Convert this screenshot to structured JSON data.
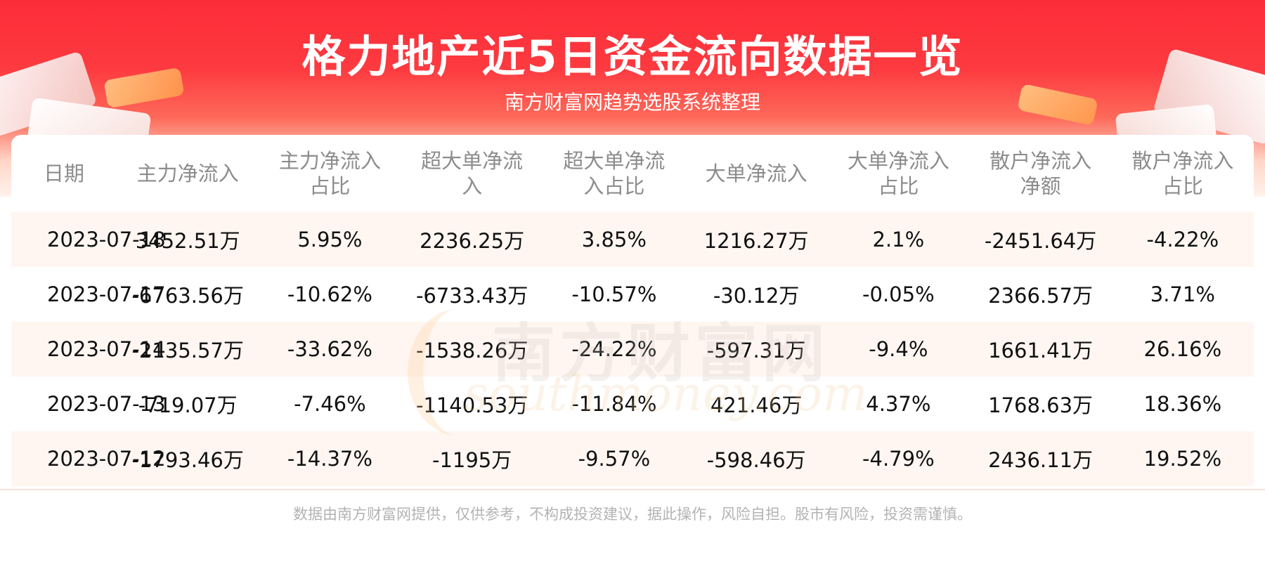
{
  "header": {
    "title": "格力地产近5日资金流向数据一览",
    "subtitle": "南方财富网趋势选股系统整理"
  },
  "watermark": {
    "cn": "南方财富网",
    "en": "southmoney.com"
  },
  "table": {
    "headers": [
      [
        "日期"
      ],
      [
        "主力净流入"
      ],
      [
        "主力净流入",
        "占比"
      ],
      [
        "超大单净流",
        "入"
      ],
      [
        "超大单净流",
        "入占比"
      ],
      [
        "大单净流入"
      ],
      [
        "大单净流入",
        "占比"
      ],
      [
        "散户净流入",
        "净额"
      ],
      [
        "散户净流入",
        "占比"
      ]
    ],
    "rows": [
      [
        "2023-07-18",
        "3452.51万",
        "5.95%",
        "2236.25万",
        "3.85%",
        "1216.27万",
        "2.1%",
        "-2451.64万",
        "-4.22%"
      ],
      [
        "2023-07-17",
        "-6763.56万",
        "-10.62%",
        "-6733.43万",
        "-10.57%",
        "-30.12万",
        "-0.05%",
        "2366.57万",
        "3.71%"
      ],
      [
        "2023-07-14",
        "-2135.57万",
        "-33.62%",
        "-1538.26万",
        "-24.22%",
        "-597.31万",
        "-9.4%",
        "1661.41万",
        "26.16%"
      ],
      [
        "2023-07-13",
        "-719.07万",
        "-7.46%",
        "-1140.53万",
        "-11.84%",
        "421.46万",
        "4.37%",
        "1768.63万",
        "18.36%"
      ],
      [
        "2023-07-12",
        "-1793.46万",
        "-14.37%",
        "-1195万",
        "-9.57%",
        "-598.46万",
        "-4.79%",
        "2436.11万",
        "19.52%"
      ]
    ]
  },
  "footer": {
    "disclaimer": "数据由南方财富网提供，仅供参考，不构成投资建议，据此操作，风险自担。股市有风险，投资需谨慎。"
  },
  "colors": {
    "banner_red": "#fb2c38",
    "row_stripe": "#fff6f1",
    "header_text": "#8c8c8c"
  }
}
